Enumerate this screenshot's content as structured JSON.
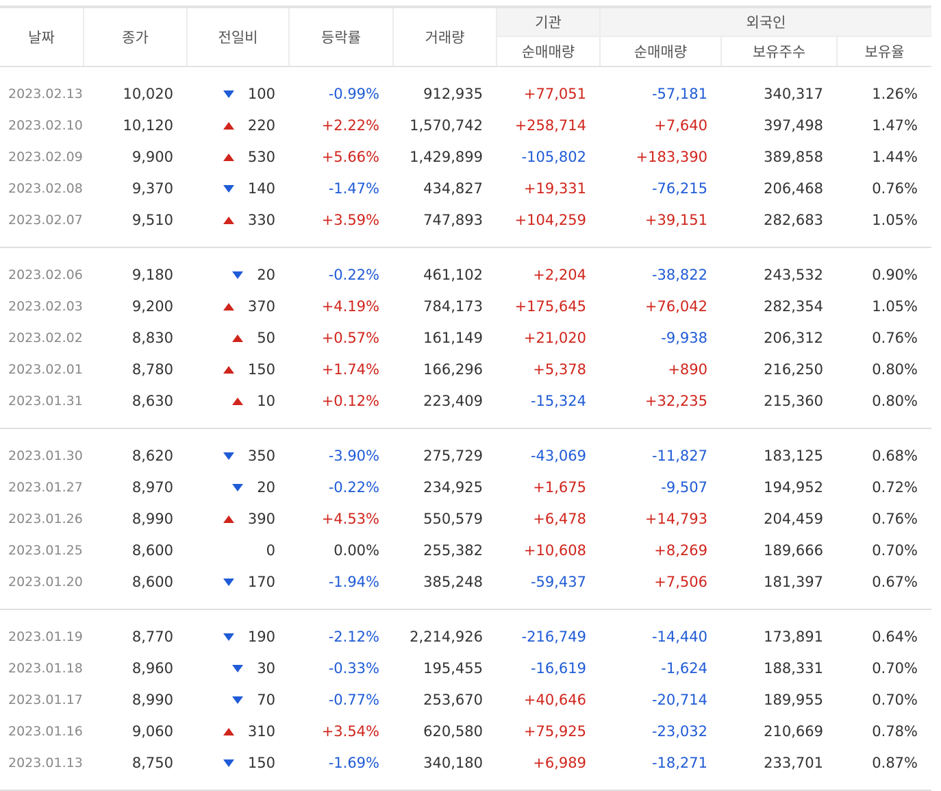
{
  "headers": {
    "date": "날짜",
    "close": "종가",
    "diff": "전일비",
    "rate": "등락률",
    "volume": "거래량",
    "institution_group": "기관",
    "foreign_group": "외국인",
    "inst_net": "순매매량",
    "foreign_net": "순매매량",
    "foreign_holding": "보유주수",
    "foreign_ratio": "보유율"
  },
  "colors": {
    "up": "#d0251c",
    "down": "#1f5bd6"
  },
  "groups": [
    [
      {
        "date": "2023.02.13",
        "close": "10,020",
        "dir": "down",
        "diff": "100",
        "rate": "-0.99%",
        "volume": "912,935",
        "inst": "+77,051",
        "foreign": "-57,181",
        "holding": "340,317",
        "ratio": "1.26%"
      },
      {
        "date": "2023.02.10",
        "close": "10,120",
        "dir": "up",
        "diff": "220",
        "rate": "+2.22%",
        "volume": "1,570,742",
        "inst": "+258,714",
        "foreign": "+7,640",
        "holding": "397,498",
        "ratio": "1.47%"
      },
      {
        "date": "2023.02.09",
        "close": "9,900",
        "dir": "up",
        "diff": "530",
        "rate": "+5.66%",
        "volume": "1,429,899",
        "inst": "-105,802",
        "foreign": "+183,390",
        "holding": "389,858",
        "ratio": "1.44%"
      },
      {
        "date": "2023.02.08",
        "close": "9,370",
        "dir": "down",
        "diff": "140",
        "rate": "-1.47%",
        "volume": "434,827",
        "inst": "+19,331",
        "foreign": "-76,215",
        "holding": "206,468",
        "ratio": "0.76%"
      },
      {
        "date": "2023.02.07",
        "close": "9,510",
        "dir": "up",
        "diff": "330",
        "rate": "+3.59%",
        "volume": "747,893",
        "inst": "+104,259",
        "foreign": "+39,151",
        "holding": "282,683",
        "ratio": "1.05%"
      }
    ],
    [
      {
        "date": "2023.02.06",
        "close": "9,180",
        "dir": "down",
        "diff": "20",
        "rate": "-0.22%",
        "volume": "461,102",
        "inst": "+2,204",
        "foreign": "-38,822",
        "holding": "243,532",
        "ratio": "0.90%"
      },
      {
        "date": "2023.02.03",
        "close": "9,200",
        "dir": "up",
        "diff": "370",
        "rate": "+4.19%",
        "volume": "784,173",
        "inst": "+175,645",
        "foreign": "+76,042",
        "holding": "282,354",
        "ratio": "1.05%"
      },
      {
        "date": "2023.02.02",
        "close": "8,830",
        "dir": "up",
        "diff": "50",
        "rate": "+0.57%",
        "volume": "161,149",
        "inst": "+21,020",
        "foreign": "-9,938",
        "holding": "206,312",
        "ratio": "0.76%"
      },
      {
        "date": "2023.02.01",
        "close": "8,780",
        "dir": "up",
        "diff": "150",
        "rate": "+1.74%",
        "volume": "166,296",
        "inst": "+5,378",
        "foreign": "+890",
        "holding": "216,250",
        "ratio": "0.80%"
      },
      {
        "date": "2023.01.31",
        "close": "8,630",
        "dir": "up",
        "diff": "10",
        "rate": "+0.12%",
        "volume": "223,409",
        "inst": "-15,324",
        "foreign": "+32,235",
        "holding": "215,360",
        "ratio": "0.80%"
      }
    ],
    [
      {
        "date": "2023.01.30",
        "close": "8,620",
        "dir": "down",
        "diff": "350",
        "rate": "-3.90%",
        "volume": "275,729",
        "inst": "-43,069",
        "foreign": "-11,827",
        "holding": "183,125",
        "ratio": "0.68%"
      },
      {
        "date": "2023.01.27",
        "close": "8,970",
        "dir": "down",
        "diff": "20",
        "rate": "-0.22%",
        "volume": "234,925",
        "inst": "+1,675",
        "foreign": "-9,507",
        "holding": "194,952",
        "ratio": "0.72%"
      },
      {
        "date": "2023.01.26",
        "close": "8,990",
        "dir": "up",
        "diff": "390",
        "rate": "+4.53%",
        "volume": "550,579",
        "inst": "+6,478",
        "foreign": "+14,793",
        "holding": "204,459",
        "ratio": "0.76%"
      },
      {
        "date": "2023.01.25",
        "close": "8,600",
        "dir": "none",
        "diff": "0",
        "rate": "0.00%",
        "volume": "255,382",
        "inst": "+10,608",
        "foreign": "+8,269",
        "holding": "189,666",
        "ratio": "0.70%"
      },
      {
        "date": "2023.01.20",
        "close": "8,600",
        "dir": "down",
        "diff": "170",
        "rate": "-1.94%",
        "volume": "385,248",
        "inst": "-59,437",
        "foreign": "+7,506",
        "holding": "181,397",
        "ratio": "0.67%"
      }
    ],
    [
      {
        "date": "2023.01.19",
        "close": "8,770",
        "dir": "down",
        "diff": "190",
        "rate": "-2.12%",
        "volume": "2,214,926",
        "inst": "-216,749",
        "foreign": "-14,440",
        "holding": "173,891",
        "ratio": "0.64%"
      },
      {
        "date": "2023.01.18",
        "close": "8,960",
        "dir": "down",
        "diff": "30",
        "rate": "-0.33%",
        "volume": "195,455",
        "inst": "-16,619",
        "foreign": "-1,624",
        "holding": "188,331",
        "ratio": "0.70%"
      },
      {
        "date": "2023.01.17",
        "close": "8,990",
        "dir": "down",
        "diff": "70",
        "rate": "-0.77%",
        "volume": "253,670",
        "inst": "+40,646",
        "foreign": "-20,714",
        "holding": "189,955",
        "ratio": "0.70%"
      },
      {
        "date": "2023.01.16",
        "close": "9,060",
        "dir": "up",
        "diff": "310",
        "rate": "+3.54%",
        "volume": "620,580",
        "inst": "+75,925",
        "foreign": "-23,032",
        "holding": "210,669",
        "ratio": "0.78%"
      },
      {
        "date": "2023.01.13",
        "close": "8,750",
        "dir": "down",
        "diff": "150",
        "rate": "-1.69%",
        "volume": "340,180",
        "inst": "+6,989",
        "foreign": "-18,271",
        "holding": "233,701",
        "ratio": "0.87%"
      }
    ]
  ]
}
